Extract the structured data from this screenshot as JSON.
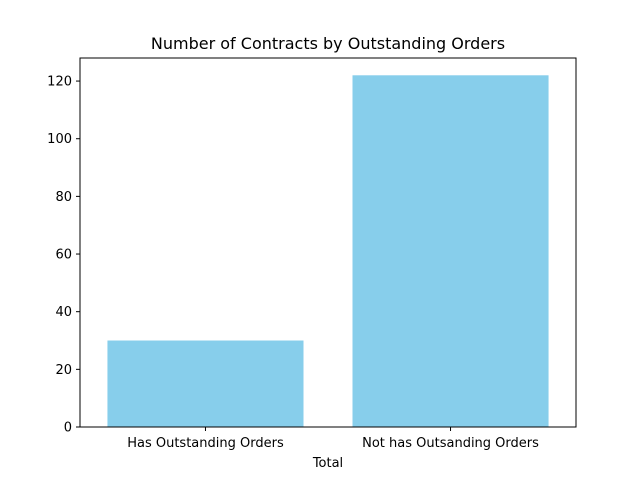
{
  "chart_data": {
    "type": "bar",
    "title": "Number of Contracts by Outstanding Orders",
    "xlabel": "Total",
    "ylabel": "",
    "categories": [
      "Has Outstanding Orders",
      "Not has Outsanding Orders"
    ],
    "values": [
      30,
      122
    ],
    "ylim": [
      0,
      128
    ],
    "yticks": [
      0,
      20,
      40,
      60,
      80,
      100,
      120
    ],
    "bar_color": "#87CEEB",
    "grid": false,
    "legend": "none"
  }
}
